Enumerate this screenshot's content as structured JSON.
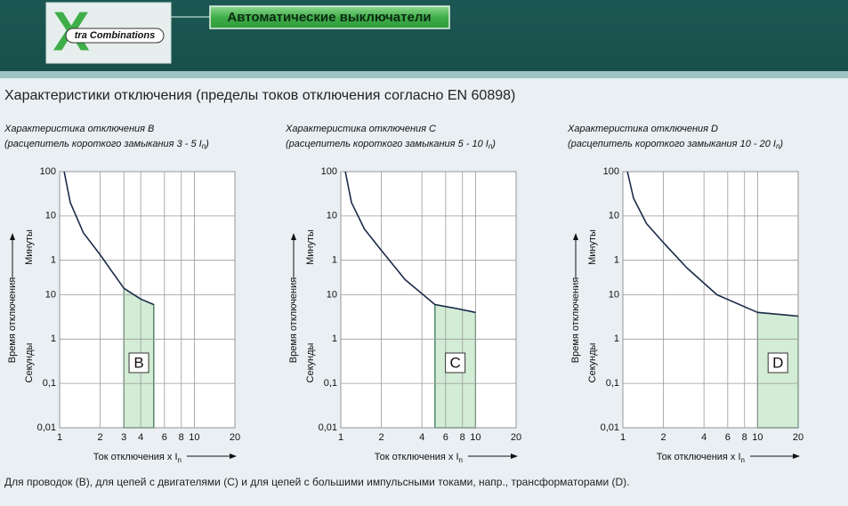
{
  "header": {
    "logo_letter": "X",
    "logo_text": "tra Combinations",
    "button": "Автоматические выключатели"
  },
  "page_title": "Характеристики отключения (пределы токов отключения согласно EN 60898)",
  "footer": "Для проводок (B), для цепей с двигателями (C) и для цепей с большими импульсными токами, напр., трансформаторами (D).",
  "chart_data": [
    {
      "type": "line",
      "title": "Характеристика отключения B",
      "subtitle": [
        "(расцепитель короткого замыкания 3 - 5 I",
        "n",
        ")"
      ],
      "xlabel": [
        "Ток отключения x I",
        "n"
      ],
      "ylabel": "Время отключения",
      "ylabel_minutes": "Минуты",
      "ylabel_seconds": "Секунды",
      "log_x": true,
      "log_y": true,
      "grid": true,
      "xlim": [
        1,
        20
      ],
      "xticks": [
        1,
        2,
        3,
        4,
        6,
        8,
        10,
        20
      ],
      "ylim": [
        0.01,
        6000
      ],
      "yticks": [
        {
          "value": 6000,
          "label": "100"
        },
        {
          "value": 600,
          "label": "10"
        },
        {
          "value": 60,
          "label": "1"
        },
        10,
        1,
        {
          "value": 0.1,
          "label": "0,1"
        },
        {
          "value": 0.01,
          "label": "0,01"
        }
      ],
      "x": [
        1.08,
        1.2,
        1.5,
        2,
        3,
        4,
        5
      ],
      "values": [
        6000,
        1200,
        250,
        80,
        14,
        8,
        6
      ],
      "color": "#1c2b4a",
      "range": [
        3,
        5
      ],
      "range_label": "B",
      "shade_color": "#d3ecd5"
    },
    {
      "type": "line",
      "title": "Характеристика отключения C",
      "subtitle": [
        "(расцепитель короткого замыкания 5 - 10 I",
        "n",
        ")"
      ],
      "xlabel": [
        "Ток отключения x I",
        "n"
      ],
      "ylabel": "Время отключения",
      "ylabel_minutes": "Минуты",
      "ylabel_seconds": "Секунды",
      "log_x": true,
      "log_y": true,
      "grid": true,
      "xlim": [
        1,
        20
      ],
      "xticks": [
        1,
        2,
        4,
        6,
        8,
        10,
        20
      ],
      "ylim": [
        0.01,
        6000
      ],
      "yticks": [
        {
          "value": 6000,
          "label": "100"
        },
        {
          "value": 600,
          "label": "10"
        },
        {
          "value": 60,
          "label": "1"
        },
        10,
        1,
        {
          "value": 0.1,
          "label": "0,1"
        },
        {
          "value": 0.01,
          "label": "0,01"
        }
      ],
      "x": [
        1.08,
        1.2,
        1.5,
        2,
        3,
        5,
        7,
        10
      ],
      "values": [
        6000,
        1200,
        300,
        100,
        22,
        6,
        5,
        4
      ],
      "color": "#1c2b4a",
      "range": [
        5,
        10
      ],
      "range_label": "C",
      "shade_color": "#d3ecd5"
    },
    {
      "type": "line",
      "title": "Характеристика отключения D",
      "subtitle": [
        "(расцепитель короткого замыкания 10 - 20 I",
        "n",
        ")"
      ],
      "xlabel": [
        "Ток отключения x I",
        "n"
      ],
      "ylabel": "Время отключения",
      "ylabel_minutes": "Минуты",
      "ylabel_seconds": "Секунды",
      "log_x": true,
      "log_y": true,
      "grid": true,
      "xlim": [
        1,
        20
      ],
      "xticks": [
        1,
        2,
        4,
        6,
        8,
        10,
        20
      ],
      "ylim": [
        0.01,
        6000
      ],
      "yticks": [
        {
          "value": 6000,
          "label": "100"
        },
        {
          "value": 600,
          "label": "10"
        },
        {
          "value": 60,
          "label": "1"
        },
        10,
        1,
        {
          "value": 0.1,
          "label": "0,1"
        },
        {
          "value": 0.01,
          "label": "0,01"
        }
      ],
      "x": [
        1.08,
        1.2,
        1.5,
        2,
        3,
        5,
        10,
        20
      ],
      "values": [
        6000,
        1500,
        400,
        150,
        40,
        10,
        4,
        3.3
      ],
      "color": "#1c2b4a",
      "range": [
        10,
        20
      ],
      "range_label": "D",
      "shade_color": "#d3ecd5"
    }
  ]
}
